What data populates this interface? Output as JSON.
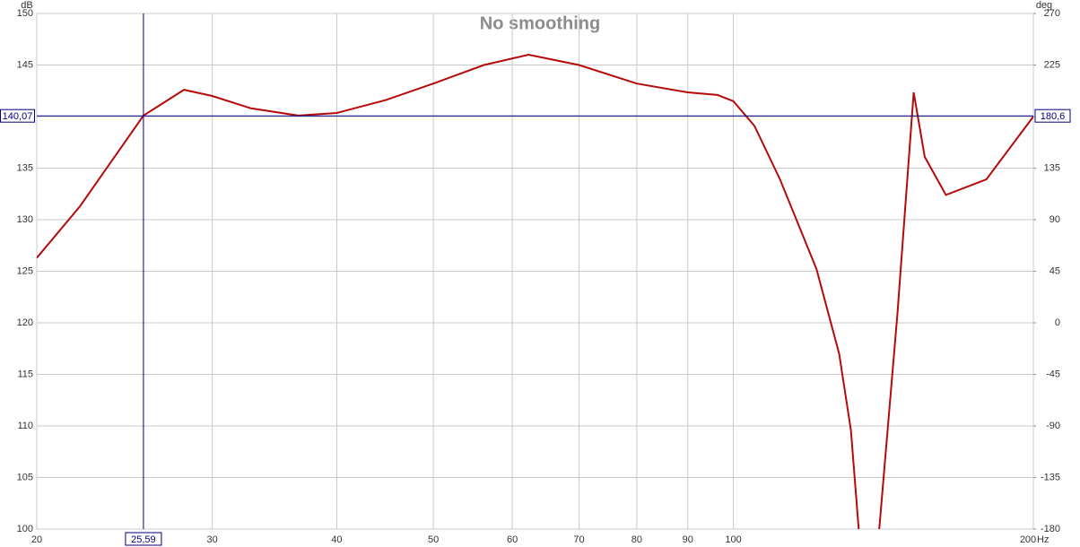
{
  "chart_data": {
    "type": "line",
    "title": "No smoothing",
    "ylabel": "dB",
    "y2label": "deg",
    "x_unit": "Hz",
    "xscale": "log",
    "grid": true,
    "color": "#b40a0a",
    "x": [
      20,
      22.1,
      25.59,
      28.1,
      30,
      32.8,
      36.6,
      40,
      44.8,
      50,
      56.2,
      62.3,
      70,
      80,
      90,
      96.4,
      100,
      105,
      111.4,
      121.2,
      127.7,
      131.2,
      133.6,
      137,
      140.1,
      146.1,
      151.7,
      155.6,
      163.4,
      179.4,
      200
    ],
    "values": [
      126.3,
      131.3,
      140.1,
      142.6,
      142.0,
      140.8,
      140.1,
      140.35,
      141.6,
      143.2,
      145.0,
      146.0,
      145.0,
      143.2,
      142.35,
      142.1,
      141.5,
      139.1,
      133.9,
      125.2,
      117.0,
      109.6,
      100,
      null,
      100,
      120.9,
      142.35,
      136.1,
      132.4,
      133.9,
      140.0
    ],
    "xlim": [
      20,
      200
    ],
    "xticks": [
      20,
      30,
      40,
      50,
      60,
      70,
      80,
      90,
      100,
      200
    ],
    "ylim": [
      100,
      150
    ],
    "yticks": [
      100,
      105,
      110,
      115,
      120,
      125,
      130,
      135,
      140,
      145,
      150
    ],
    "y2lim": [
      -180,
      270
    ],
    "y2ticks": [
      -180,
      -135,
      -90,
      -45,
      0,
      45,
      90,
      135,
      180,
      225,
      270
    ],
    "cursor": {
      "x": {
        "value": 25.59,
        "label": "25,59"
      },
      "y": {
        "value": 140.07,
        "label": "140,07"
      },
      "y2": {
        "value": 180.6,
        "label": "180,6"
      },
      "color": "#000080"
    }
  }
}
